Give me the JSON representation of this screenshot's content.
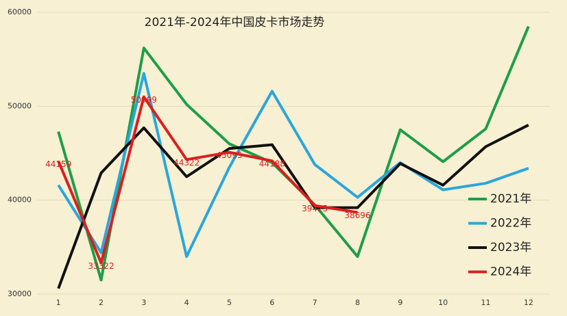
{
  "chart_data": {
    "type": "line",
    "title": "2021年-2024年中国皮卡市场走势",
    "categories": [
      "1",
      "2",
      "3",
      "4",
      "5",
      "6",
      "7",
      "8",
      "9",
      "10",
      "11",
      "12"
    ],
    "series": [
      {
        "name": "2021年",
        "color": "#1e9e48",
        "values": [
          47300,
          31500,
          56200,
          50200,
          46000,
          44000,
          39500,
          34000,
          47500,
          44100,
          47600,
          58500
        ]
      },
      {
        "name": "2022年",
        "color": "#2aa6dc",
        "values": [
          41600,
          34400,
          53500,
          34000,
          43500,
          51600,
          43800,
          40300,
          44000,
          41100,
          41800,
          43400
        ]
      },
      {
        "name": "2023年",
        "color": "#111111",
        "values": [
          30600,
          42900,
          47700,
          42500,
          45500,
          45900,
          39200,
          39200,
          43900,
          41600,
          45700,
          48000
        ]
      },
      {
        "name": "2024年",
        "color": "#d9201e",
        "values": [
          44159,
          33322,
          50999,
          44322,
          45095,
          44188,
          39425,
          38696,
          null,
          null,
          null,
          null
        ],
        "data_labels": true
      }
    ],
    "ylim": [
      30000,
      60000
    ],
    "yticks": [
      30000,
      40000,
      50000,
      60000
    ],
    "grid": true,
    "legend": "lower right"
  }
}
